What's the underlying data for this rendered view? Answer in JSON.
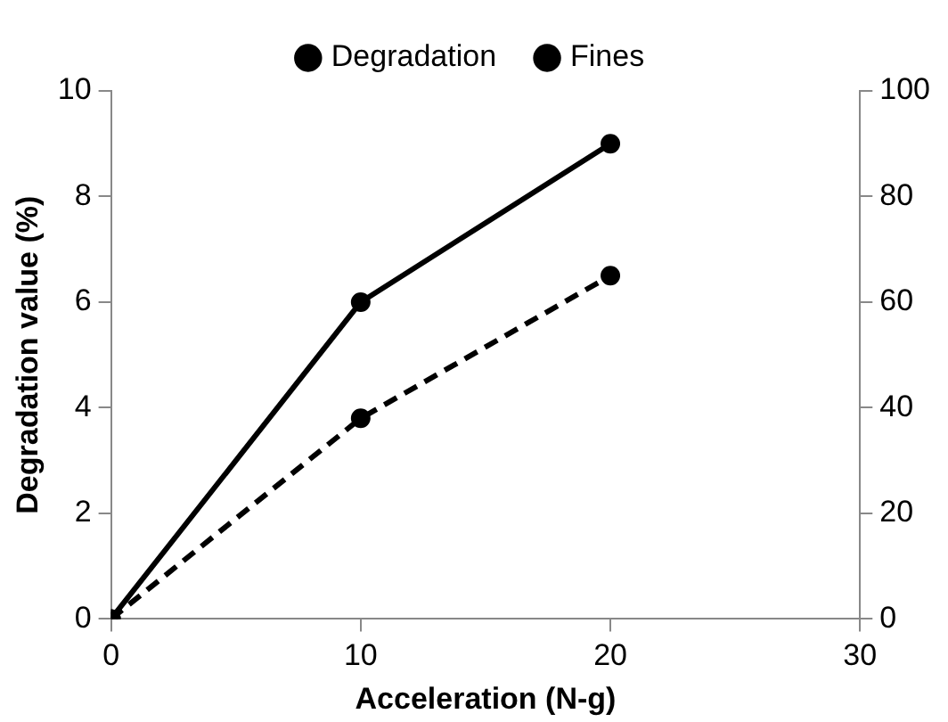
{
  "chart_data": {
    "type": "line",
    "xlabel": "Acceleration (N-g)",
    "ylabel": "Degradation value (%)",
    "x": [
      0,
      10,
      20
    ],
    "series": [
      {
        "name": "Degradation",
        "color": "#000000",
        "values": [
          0,
          6,
          9
        ],
        "line_style": "solid"
      },
      {
        "name": "Fines",
        "color": "#000000",
        "values": [
          0,
          38,
          65
        ],
        "axis": "y2",
        "line_style": "dashed"
      }
    ],
    "xlim": [
      0,
      30
    ],
    "xticks": [
      0,
      10,
      20,
      30
    ],
    "ylim": [
      0,
      10
    ],
    "yticks": [
      0,
      2,
      4,
      6,
      8,
      10
    ],
    "y2lim": [
      0,
      100
    ],
    "y2ticks": [
      0,
      20,
      40,
      60,
      80,
      100
    ],
    "grid": false,
    "legend": "top",
    "marker": "circle"
  }
}
